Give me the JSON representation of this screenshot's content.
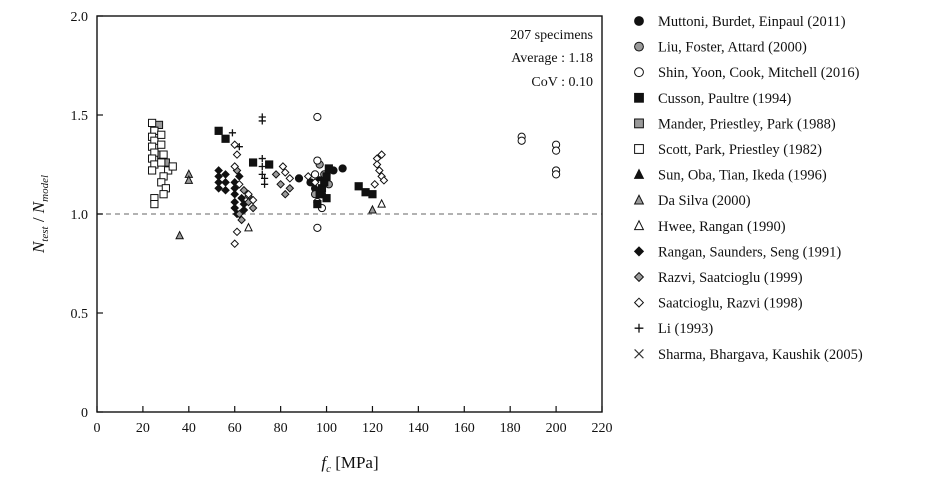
{
  "chart_data": {
    "type": "scatter",
    "xlabel": {
      "base": "f",
      "sub": "c",
      "unit": " [MPa]"
    },
    "ylabel": {
      "n1": "N",
      "s1": "test",
      "sep": " / ",
      "n2": "N",
      "s2": "model"
    },
    "xlim": [
      0,
      220
    ],
    "ylim": [
      0,
      2.0
    ],
    "xticks": [
      0,
      20,
      40,
      60,
      80,
      100,
      120,
      140,
      160,
      180,
      200,
      220
    ],
    "yticks": [
      0,
      0.5,
      1.0,
      1.5,
      2.0
    ],
    "ytick_labels": [
      "0",
      "0.5",
      "1.0",
      "1.5",
      "2.0"
    ],
    "reference_line": {
      "y": 1.0,
      "style": "dashed",
      "color": "#999999"
    },
    "annotations": [
      "207 specimens",
      "Average : 1.18",
      "CoV : 0.10"
    ],
    "grid": false,
    "legend_position": "right",
    "series": [
      {
        "name": "Muttoni, Burdet, Einpaul (2011)",
        "marker": "circle",
        "fill": "#111111",
        "points": [
          [
            88,
            1.18
          ],
          [
            93,
            1.16
          ],
          [
            97,
            1.17
          ],
          [
            100,
            1.2
          ],
          [
            103,
            1.22
          ],
          [
            107,
            1.23
          ],
          [
            95,
            1.13
          ],
          [
            98,
            1.1
          ]
        ]
      },
      {
        "name": "Liu, Foster, Attard (2000)",
        "marker": "circle",
        "fill": "#9a9a9a",
        "points": [
          [
            97,
            1.25
          ],
          [
            99,
            1.2
          ],
          [
            101,
            1.15
          ],
          [
            95,
            1.1
          ]
        ]
      },
      {
        "name": "Shin, Yoon, Cook, Mitchell (2016)",
        "marker": "circle",
        "fill": "#ffffff",
        "points": [
          [
            96,
            1.49
          ],
          [
            96,
            1.27
          ],
          [
            96,
            0.93
          ],
          [
            185,
            1.39
          ],
          [
            185,
            1.37
          ],
          [
            200,
            1.35
          ],
          [
            200,
            1.32
          ],
          [
            200,
            1.22
          ],
          [
            200,
            1.2
          ],
          [
            96,
            1.06
          ],
          [
            98,
            1.03
          ],
          [
            97,
            1.15
          ],
          [
            95,
            1.2
          ]
        ]
      },
      {
        "name": "Cusson, Paultre (1994)",
        "marker": "square",
        "fill": "#111111",
        "points": [
          [
            53,
            1.42
          ],
          [
            56,
            1.38
          ],
          [
            68,
            1.26
          ],
          [
            75,
            1.25
          ],
          [
            97,
            1.1
          ],
          [
            98,
            1.13
          ],
          [
            99,
            1.16
          ],
          [
            100,
            1.19
          ],
          [
            101,
            1.23
          ],
          [
            96,
            1.05
          ],
          [
            100,
            1.08
          ],
          [
            114,
            1.14
          ],
          [
            117,
            1.11
          ],
          [
            120,
            1.1
          ]
        ]
      },
      {
        "name": "Mander, Priestley, Park (1988)",
        "marker": "square",
        "fill": "#9a9a9a",
        "points": [
          [
            27,
            1.45
          ],
          [
            25,
            1.42
          ],
          [
            30,
            1.26
          ],
          [
            28,
            1.3
          ]
        ]
      },
      {
        "name": "Scott, Park, Priestley (1982)",
        "marker": "square",
        "fill": "#ffffff",
        "points": [
          [
            24,
            1.46
          ],
          [
            25,
            1.42
          ],
          [
            24,
            1.39
          ],
          [
            25,
            1.37
          ],
          [
            24,
            1.34
          ],
          [
            25,
            1.31
          ],
          [
            24,
            1.28
          ],
          [
            25,
            1.25
          ],
          [
            24,
            1.22
          ],
          [
            28,
            1.4
          ],
          [
            28,
            1.35
          ],
          [
            29,
            1.3
          ],
          [
            28,
            1.26
          ],
          [
            31,
            1.22
          ],
          [
            29,
            1.19
          ],
          [
            28,
            1.16
          ],
          [
            30,
            1.13
          ],
          [
            29,
            1.1
          ],
          [
            25,
            1.08
          ],
          [
            25,
            1.05
          ],
          [
            33,
            1.24
          ]
        ]
      },
      {
        "name": "Sun, Oba, Tian, Ikeda (1996)",
        "marker": "triangle",
        "fill": "#111111",
        "points": []
      },
      {
        "name": "Da Silva (2000)",
        "marker": "triangle",
        "fill": "#9a9a9a",
        "points": [
          [
            36,
            0.89
          ],
          [
            40,
            1.2
          ],
          [
            40,
            1.17
          ],
          [
            120,
            1.02
          ]
        ]
      },
      {
        "name": "Hwee, Rangan (1990)",
        "marker": "triangle",
        "fill": "#ffffff",
        "points": [
          [
            66,
            0.93
          ],
          [
            124,
            1.05
          ]
        ]
      },
      {
        "name": "Rangan, Saunders, Seng (1991)",
        "marker": "diamond",
        "fill": "#111111",
        "points": [
          [
            53,
            1.22
          ],
          [
            53,
            1.19
          ],
          [
            53,
            1.16
          ],
          [
            53,
            1.13
          ],
          [
            56,
            1.2
          ],
          [
            56,
            1.16
          ],
          [
            56,
            1.12
          ],
          [
            60,
            1.16
          ],
          [
            60,
            1.13
          ],
          [
            60,
            1.1
          ],
          [
            60,
            1.06
          ],
          [
            60,
            1.03
          ],
          [
            61,
            1.0
          ],
          [
            62,
            1.19
          ],
          [
            63,
            1.08
          ],
          [
            64,
            1.05
          ],
          [
            64,
            1.02
          ]
        ]
      },
      {
        "name": "Razvi, Saatcioglu (1999)",
        "marker": "diamond",
        "fill": "#9a9a9a",
        "points": [
          [
            61,
            1.22
          ],
          [
            62,
            1.0
          ],
          [
            63,
            0.97
          ],
          [
            64,
            1.12
          ],
          [
            66,
            1.09
          ],
          [
            66,
            1.06
          ],
          [
            68,
            1.03
          ],
          [
            78,
            1.2
          ],
          [
            80,
            1.15
          ],
          [
            82,
            1.1
          ],
          [
            84,
            1.13
          ]
        ]
      },
      {
        "name": "Saatcioglu, Razvi (1998)",
        "marker": "diamond",
        "fill": "#ffffff",
        "points": [
          [
            60,
            1.35
          ],
          [
            61,
            1.3
          ],
          [
            60,
            1.24
          ],
          [
            61,
            0.91
          ],
          [
            60,
            0.85
          ],
          [
            62,
            1.15
          ],
          [
            66,
            1.1
          ],
          [
            68,
            1.07
          ],
          [
            81,
            1.24
          ],
          [
            82,
            1.21
          ],
          [
            84,
            1.18
          ],
          [
            92,
            1.19
          ],
          [
            95,
            1.16
          ],
          [
            122,
            1.28
          ],
          [
            122,
            1.25
          ],
          [
            123,
            1.22
          ],
          [
            124,
            1.19
          ],
          [
            125,
            1.17
          ],
          [
            121,
            1.15
          ],
          [
            124,
            1.3
          ]
        ]
      },
      {
        "name": "Li (1993)",
        "marker": "plus",
        "fill": "#111111",
        "points": [
          [
            59,
            1.41
          ],
          [
            62,
            1.34
          ],
          [
            72,
            1.49
          ],
          [
            72,
            1.47
          ],
          [
            72,
            1.24
          ],
          [
            72,
            1.2
          ],
          [
            73,
            1.18
          ],
          [
            73,
            1.15
          ],
          [
            72,
            1.28
          ]
        ]
      },
      {
        "name": "Sharma, Bhargava, Kaushik (2005)",
        "marker": "cross",
        "fill": "#111111",
        "points": []
      }
    ]
  }
}
